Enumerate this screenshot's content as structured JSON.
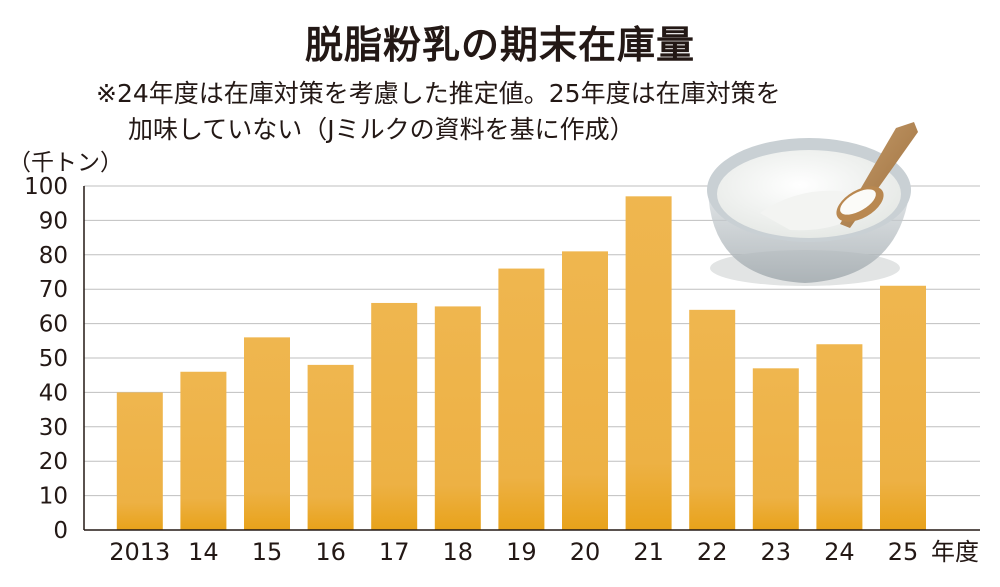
{
  "title": "脱脂粉乳の期末在庫量",
  "note_line1": "※24年度は在庫対策を考慮した推定値。25年度は在庫対策を",
  "note_line2": "加味していない（Jミルクの資料を基に作成）",
  "y_unit": "（千トン）",
  "x_suffix": "年度",
  "colors": {
    "bar_top": "#efb64f",
    "bar_bottom": "#e8a21a",
    "grid": "#bfbfbf",
    "axis": "#231815"
  },
  "chart_data": {
    "type": "bar",
    "categories": [
      "2013",
      "14",
      "15",
      "16",
      "17",
      "18",
      "19",
      "20",
      "21",
      "22",
      "23",
      "24",
      "25"
    ],
    "values": [
      40,
      46,
      56,
      48,
      66,
      65,
      76,
      81,
      97,
      64,
      47,
      54,
      71
    ],
    "ylabel": "（千トン）",
    "xlabel": "年度",
    "ylim": [
      0,
      100
    ],
    "yticks": [
      0,
      10,
      20,
      30,
      40,
      50,
      60,
      70,
      80,
      90,
      100
    ],
    "grid": true
  }
}
